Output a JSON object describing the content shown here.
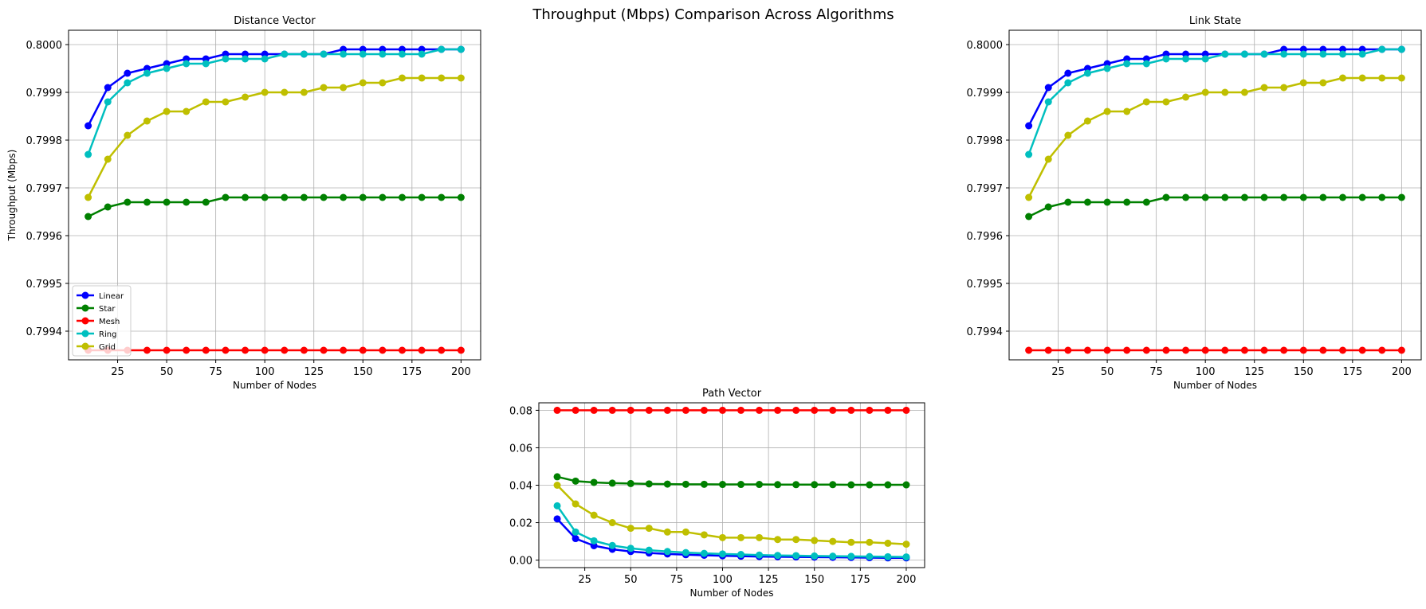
{
  "figure": {
    "suptitle": "Throughput (Mbps) Comparison Across Algorithms"
  },
  "chart_data": [
    {
      "type": "line",
      "title": "Distance Vector",
      "xlabel": "Number of Nodes",
      "ylabel": "Throughput (Mbps)",
      "xlim": [
        0,
        210
      ],
      "ylim": [
        0.79934,
        0.80003
      ],
      "xticks": [
        25,
        50,
        75,
        100,
        125,
        150,
        175,
        200
      ],
      "yticks": [
        0.7994,
        0.7995,
        0.7996,
        0.7997,
        0.7998,
        0.7999,
        0.8
      ],
      "yticks_decimals": 4,
      "grid": true,
      "legend": "lower-left",
      "x": [
        10,
        20,
        30,
        40,
        50,
        60,
        70,
        80,
        90,
        100,
        110,
        120,
        130,
        140,
        150,
        160,
        170,
        180,
        190,
        200
      ],
      "series": [
        {
          "name": "Linear",
          "color": "#0000ff",
          "values": [
            0.79983,
            0.79991,
            0.79994,
            0.79995,
            0.79996,
            0.79997,
            0.79997,
            0.79998,
            0.79998,
            0.79998,
            0.79998,
            0.79998,
            0.79998,
            0.79999,
            0.79999,
            0.79999,
            0.79999,
            0.79999,
            0.79999,
            0.79999
          ]
        },
        {
          "name": "Star",
          "color": "#008000",
          "values": [
            0.79964,
            0.79966,
            0.79967,
            0.79967,
            0.79967,
            0.79967,
            0.79967,
            0.79968,
            0.79968,
            0.79968,
            0.79968,
            0.79968,
            0.79968,
            0.79968,
            0.79968,
            0.79968,
            0.79968,
            0.79968,
            0.79968,
            0.79968
          ]
        },
        {
          "name": "Mesh",
          "color": "#ff0000",
          "values": [
            0.79936,
            0.79936,
            0.79936,
            0.79936,
            0.79936,
            0.79936,
            0.79936,
            0.79936,
            0.79936,
            0.79936,
            0.79936,
            0.79936,
            0.79936,
            0.79936,
            0.79936,
            0.79936,
            0.79936,
            0.79936,
            0.79936,
            0.79936
          ]
        },
        {
          "name": "Ring",
          "color": "#00bfbf",
          "values": [
            0.79977,
            0.79988,
            0.79992,
            0.79994,
            0.79995,
            0.79996,
            0.79996,
            0.79997,
            0.79997,
            0.79997,
            0.79998,
            0.79998,
            0.79998,
            0.79998,
            0.79998,
            0.79998,
            0.79998,
            0.79998,
            0.79999,
            0.79999
          ]
        },
        {
          "name": "Grid",
          "color": "#bfbf00",
          "values": [
            0.79968,
            0.79976,
            0.79981,
            0.79984,
            0.79986,
            0.79986,
            0.79988,
            0.79988,
            0.79989,
            0.7999,
            0.7999,
            0.7999,
            0.79991,
            0.79991,
            0.79992,
            0.79992,
            0.79993,
            0.79993,
            0.79993,
            0.79993
          ]
        }
      ]
    },
    {
      "type": "line",
      "title": "Link State",
      "xlabel": "Number of Nodes",
      "ylabel": "",
      "xlim": [
        0,
        210
      ],
      "ylim": [
        0.79934,
        0.80003
      ],
      "xticks": [
        25,
        50,
        75,
        100,
        125,
        150,
        175,
        200
      ],
      "yticks": [
        0.7994,
        0.7995,
        0.7996,
        0.7997,
        0.7998,
        0.7999,
        0.8
      ],
      "yticks_decimals": 4,
      "grid": true,
      "legend": "none",
      "x": [
        10,
        20,
        30,
        40,
        50,
        60,
        70,
        80,
        90,
        100,
        110,
        120,
        130,
        140,
        150,
        160,
        170,
        180,
        190,
        200
      ],
      "series": [
        {
          "color": "#0000ff",
          "values": [
            0.79983,
            0.79991,
            0.79994,
            0.79995,
            0.79996,
            0.79997,
            0.79997,
            0.79998,
            0.79998,
            0.79998,
            0.79998,
            0.79998,
            0.79998,
            0.79999,
            0.79999,
            0.79999,
            0.79999,
            0.79999,
            0.79999,
            0.79999
          ]
        },
        {
          "color": "#008000",
          "values": [
            0.79964,
            0.79966,
            0.79967,
            0.79967,
            0.79967,
            0.79967,
            0.79967,
            0.79968,
            0.79968,
            0.79968,
            0.79968,
            0.79968,
            0.79968,
            0.79968,
            0.79968,
            0.79968,
            0.79968,
            0.79968,
            0.79968,
            0.79968
          ]
        },
        {
          "color": "#ff0000",
          "values": [
            0.79936,
            0.79936,
            0.79936,
            0.79936,
            0.79936,
            0.79936,
            0.79936,
            0.79936,
            0.79936,
            0.79936,
            0.79936,
            0.79936,
            0.79936,
            0.79936,
            0.79936,
            0.79936,
            0.79936,
            0.79936,
            0.79936,
            0.79936
          ]
        },
        {
          "color": "#00bfbf",
          "values": [
            0.79977,
            0.79988,
            0.79992,
            0.79994,
            0.79995,
            0.79996,
            0.79996,
            0.79997,
            0.79997,
            0.79997,
            0.79998,
            0.79998,
            0.79998,
            0.79998,
            0.79998,
            0.79998,
            0.79998,
            0.79998,
            0.79999,
            0.79999
          ]
        },
        {
          "color": "#bfbf00",
          "values": [
            0.79968,
            0.79976,
            0.79981,
            0.79984,
            0.79986,
            0.79986,
            0.79988,
            0.79988,
            0.79989,
            0.7999,
            0.7999,
            0.7999,
            0.79991,
            0.79991,
            0.79992,
            0.79992,
            0.79993,
            0.79993,
            0.79993,
            0.79993
          ]
        }
      ]
    },
    {
      "type": "line",
      "title": "Path Vector",
      "xlabel": "Number of Nodes",
      "ylabel": "",
      "xlim": [
        0,
        210
      ],
      "ylim": [
        -0.004,
        0.084
      ],
      "xticks": [
        25,
        50,
        75,
        100,
        125,
        150,
        175,
        200
      ],
      "yticks": [
        0.0,
        0.02,
        0.04,
        0.06,
        0.08
      ],
      "yticks_decimals": 2,
      "grid": true,
      "legend": "none",
      "x": [
        10,
        20,
        30,
        40,
        50,
        60,
        70,
        80,
        90,
        100,
        110,
        120,
        130,
        140,
        150,
        160,
        170,
        180,
        190,
        200
      ],
      "series": [
        {
          "color": "#0000ff",
          "values": [
            0.022,
            0.0115,
            0.0077,
            0.0058,
            0.0046,
            0.0038,
            0.0033,
            0.0029,
            0.0026,
            0.0023,
            0.0021,
            0.0019,
            0.0018,
            0.0017,
            0.0016,
            0.0015,
            0.0014,
            0.0013,
            0.0012,
            0.0012
          ]
        },
        {
          "color": "#008000",
          "values": [
            0.0445,
            0.0422,
            0.0415,
            0.0411,
            0.0409,
            0.0407,
            0.0406,
            0.0405,
            0.0405,
            0.0404,
            0.0404,
            0.0404,
            0.0403,
            0.0403,
            0.0403,
            0.0403,
            0.0402,
            0.0402,
            0.0402,
            0.0402
          ]
        },
        {
          "color": "#ff0000",
          "values": [
            0.08,
            0.08,
            0.08,
            0.08,
            0.08,
            0.08,
            0.08,
            0.08,
            0.08,
            0.08,
            0.08,
            0.08,
            0.08,
            0.08,
            0.08,
            0.08,
            0.08,
            0.08,
            0.08,
            0.08
          ]
        },
        {
          "color": "#00bfbf",
          "values": [
            0.029,
            0.015,
            0.0103,
            0.0078,
            0.0063,
            0.0053,
            0.0046,
            0.004,
            0.0036,
            0.0033,
            0.003,
            0.0027,
            0.0025,
            0.0024,
            0.0022,
            0.0021,
            0.002,
            0.0019,
            0.0018,
            0.0017
          ]
        },
        {
          "color": "#bfbf00",
          "values": [
            0.04,
            0.03,
            0.024,
            0.02,
            0.017,
            0.017,
            0.015,
            0.015,
            0.0135,
            0.012,
            0.012,
            0.012,
            0.011,
            0.011,
            0.0105,
            0.01,
            0.0095,
            0.0095,
            0.009,
            0.0085
          ]
        }
      ]
    }
  ]
}
